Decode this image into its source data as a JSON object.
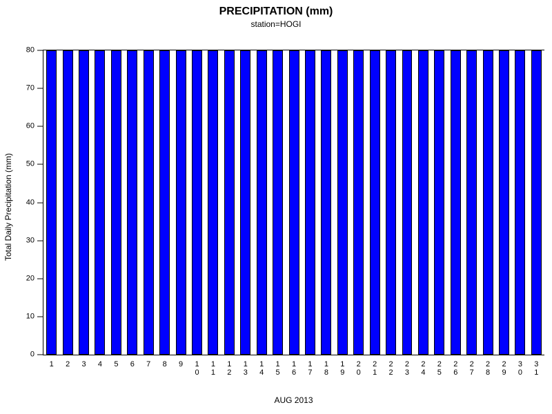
{
  "title": "PRECIPITATION (mm)",
  "subtitle": "station=HOGI",
  "chart_data": {
    "type": "bar",
    "title": "PRECIPITATION (mm)",
    "subtitle": "station=HOGI",
    "xlabel": "AUG 2013",
    "ylabel": "Total Daily Precipitation (mm)",
    "categories": [
      "1",
      "2",
      "3",
      "4",
      "5",
      "6",
      "7",
      "8",
      "9",
      "10",
      "11",
      "12",
      "13",
      "14",
      "15",
      "16",
      "17",
      "18",
      "19",
      "20",
      "21",
      "22",
      "23",
      "24",
      "25",
      "26",
      "27",
      "28",
      "29",
      "30",
      "31"
    ],
    "values": [
      80,
      80,
      80,
      80,
      80,
      80,
      80,
      80,
      80,
      80,
      80,
      80,
      80,
      80,
      80,
      80,
      80,
      80,
      80,
      80,
      80,
      80,
      80,
      80,
      80,
      80,
      80,
      80,
      80,
      80,
      80
    ],
    "ylim": [
      0,
      80
    ],
    "ytick_step": 10,
    "yticks": [
      0,
      10,
      20,
      30,
      40,
      50,
      60,
      70,
      80
    ],
    "grid": false,
    "legend_position": "none",
    "bar_color": "#0000FF",
    "bar_outline_color": "#000000",
    "axis_color": "#000000",
    "background_color": "#FFFFFF"
  }
}
